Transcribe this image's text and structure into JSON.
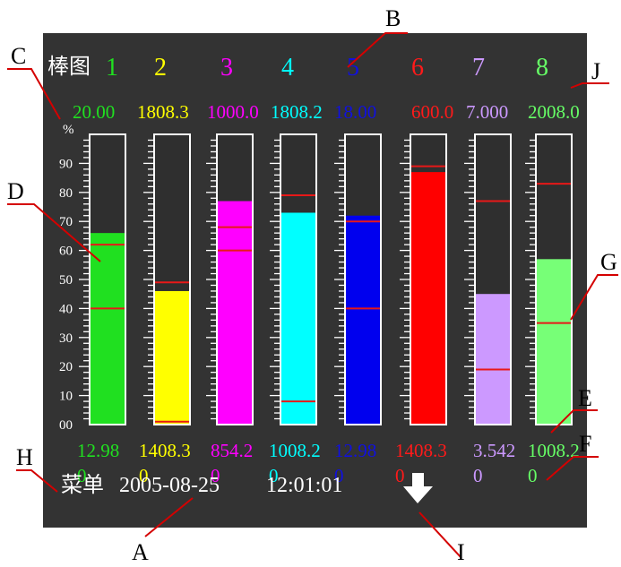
{
  "screen": {
    "title": "棒图",
    "unit": "%",
    "menu_label": "菜单",
    "date": "2005-08-25",
    "time": "12:01:01",
    "background": "#333333",
    "status_icon": "down-arrow-icon"
  },
  "scale": {
    "labels": [
      "00",
      "10",
      "20",
      "30",
      "40",
      "50",
      "60",
      "70",
      "80",
      "90"
    ],
    "min": 0,
    "max": 100
  },
  "channels": [
    {
      "number": "1",
      "color": "#20e020",
      "fill": "#20e020",
      "range": "20.00",
      "value": "12.98",
      "alarm": "0",
      "level_percent": 66,
      "alarm_lines_percent": [
        62,
        40
      ]
    },
    {
      "number": "2",
      "color": "#ffff00",
      "fill": "#ffff00",
      "range": "1808.3",
      "value": "1408.3",
      "alarm": "0",
      "level_percent": 46,
      "alarm_lines_percent": [
        49,
        1
      ]
    },
    {
      "number": "3",
      "color": "#ff00ff",
      "fill": "#ff00ff",
      "range": "1000.0",
      "value": "854.2",
      "alarm": "0",
      "level_percent": 77,
      "alarm_lines_percent": [
        68,
        60
      ]
    },
    {
      "number": "4",
      "color": "#00ffff",
      "fill": "#00ffff",
      "range": "1808.2",
      "value": "1008.2",
      "alarm": "0",
      "level_percent": 73,
      "alarm_lines_percent": [
        79,
        8
      ]
    },
    {
      "number": "5",
      "color": "#1010e0",
      "fill": "#0000ee",
      "range": "18.00",
      "value": "12.98",
      "alarm": "0",
      "level_percent": 72,
      "alarm_lines_percent": [
        70,
        40
      ]
    },
    {
      "number": "6",
      "color": "#ff1a1a",
      "fill": "#ff0000",
      "range": "600.0",
      "value": "1408.3",
      "alarm": "0",
      "level_percent": 87,
      "alarm_lines_percent": [
        89
      ]
    },
    {
      "number": "7",
      "color": "#cc99ff",
      "fill": "#cc99ff",
      "range": "7.000",
      "value": "3.542",
      "alarm": "0",
      "level_percent": 45,
      "alarm_lines_percent": [
        77,
        19
      ]
    },
    {
      "number": "8",
      "color": "#66ff66",
      "fill": "#77ff77",
      "range": "2008.0",
      "value": "1008.2",
      "alarm": "0",
      "level_percent": 57,
      "alarm_lines_percent": [
        83,
        35
      ]
    }
  ],
  "callouts": [
    "A",
    "B",
    "C",
    "D",
    "E",
    "F",
    "G",
    "H",
    "I",
    "J"
  ],
  "colors": {
    "callout_line": "#d40000",
    "alarm_line": "#e81818"
  }
}
